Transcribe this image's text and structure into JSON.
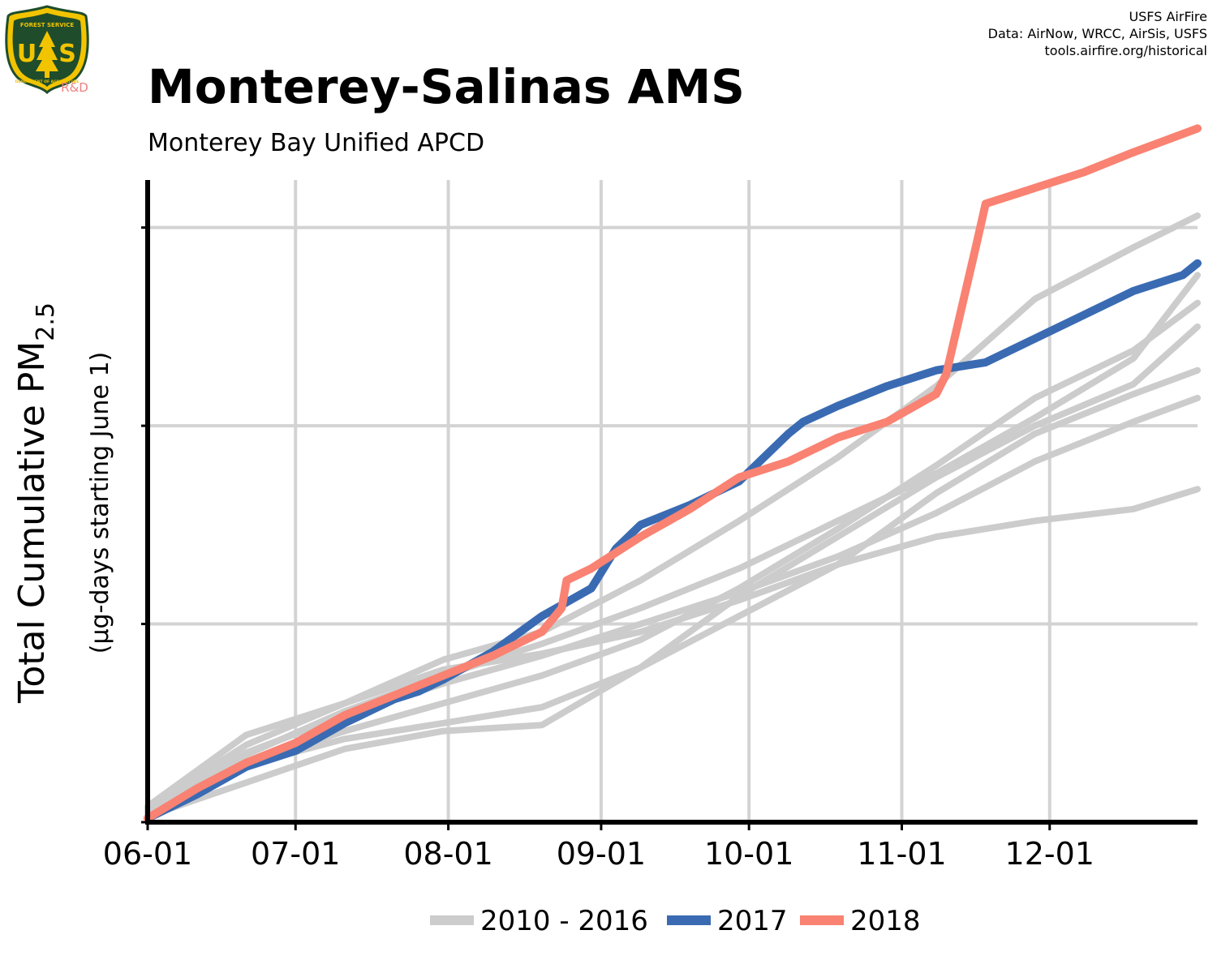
{
  "header": {
    "title": "Monterey-Salinas AMS",
    "subtitle": "Monterey Bay Unified APCD",
    "credits": [
      "USFS AirFire",
      "Data: AirNow, WRCC, AirSis, USFS",
      "tools.airfire.org/historical"
    ]
  },
  "logo": {
    "icon": "usfs-shield-icon",
    "top_text": "FOREST SERVICE",
    "letters_left": "U",
    "letters_right": "S",
    "bottom_text": "DEPARTMENT OF AGRICULTURE",
    "rd_label": "R&D",
    "colors": {
      "shield": "#1f4d2b",
      "trim": "#f2c400",
      "rd": "#f08080"
    }
  },
  "chart_data": {
    "type": "line",
    "title": "Monterey-Salinas AMS",
    "subtitle": "Monterey Bay Unified APCD",
    "ylabel_main": "Total Cumulative PM",
    "ylabel_subscript": "2.5",
    "ylabel_secondary": "(µg-days starting June 1)",
    "xlabel": "",
    "x_ticks": [
      {
        "label": "06-01",
        "day": 0
      },
      {
        "label": "07-01",
        "day": 30
      },
      {
        "label": "08-01",
        "day": 61
      },
      {
        "label": "09-01",
        "day": 92
      },
      {
        "label": "10-01",
        "day": 122
      },
      {
        "label": "11-01",
        "day": 153
      },
      {
        "label": "12-01",
        "day": 183
      }
    ],
    "xlim": [
      0,
      213
    ],
    "ylim": [
      0,
      1620
    ],
    "y_gridlines": [
      0,
      500,
      1000,
      1500
    ],
    "y_tick_labels_shown": false,
    "grid": true,
    "legend_position": "bottom",
    "legend": [
      {
        "label": "2010 - 2016",
        "color": "#cccccc"
      },
      {
        "label": "2017",
        "color": "#3a6bb2"
      },
      {
        "label": "2018",
        "color": "#f98272"
      }
    ],
    "series": [
      {
        "group": "2010 - 2016",
        "color": "#cccccc",
        "x": [
          0,
          20,
          40,
          60,
          80,
          100,
          120,
          140,
          160,
          180,
          200,
          213
        ],
        "y": [
          40,
          220,
          300,
          385,
          425,
          480,
          560,
          650,
          720,
          760,
          790,
          840
        ]
      },
      {
        "group": "2010 - 2016",
        "color": "#cccccc",
        "x": [
          0,
          20,
          40,
          60,
          80,
          100,
          120,
          140,
          160,
          180,
          200,
          213
        ],
        "y": [
          20,
          145,
          210,
          250,
          290,
          390,
          570,
          720,
          870,
          1000,
          1105,
          1250
        ]
      },
      {
        "group": "2010 - 2016",
        "color": "#cccccc",
        "x": [
          0,
          20,
          40,
          60,
          80,
          100,
          120,
          140,
          160,
          180,
          200,
          213
        ],
        "y": [
          15,
          100,
          185,
          230,
          245,
          390,
          520,
          650,
          830,
          980,
          1080,
          1140
        ]
      },
      {
        "group": "2010 - 2016",
        "color": "#cccccc",
        "x": [
          0,
          20,
          40,
          60,
          80,
          100,
          120,
          140,
          160,
          180,
          200,
          213
        ],
        "y": [
          20,
          150,
          230,
          300,
          370,
          460,
          590,
          740,
          900,
          1070,
          1190,
          1310
        ]
      },
      {
        "group": "2010 - 2016",
        "color": "#cccccc",
        "x": [
          0,
          20,
          40,
          60,
          80,
          100,
          120,
          140,
          160,
          180,
          200,
          213
        ],
        "y": [
          25,
          175,
          270,
          350,
          420,
          500,
          580,
          670,
          780,
          910,
          1010,
          1070
        ]
      },
      {
        "group": "2010 - 2016",
        "color": "#cccccc",
        "x": [
          0,
          20,
          40,
          60,
          80,
          100,
          120,
          140,
          160,
          180,
          200,
          213
        ],
        "y": [
          35,
          195,
          300,
          410,
          480,
          610,
          760,
          920,
          1100,
          1320,
          1450,
          1530
        ]
      },
      {
        "group": "2010 - 2016",
        "color": "#cccccc",
        "x": [
          0,
          20,
          40,
          60,
          80,
          100,
          120,
          140,
          160,
          180,
          200,
          213
        ],
        "y": [
          30,
          170,
          280,
          370,
          450,
          540,
          640,
          760,
          880,
          1020,
          1170,
          1380
        ]
      },
      {
        "name": "2017",
        "color": "#3a6bb2",
        "x": [
          0,
          10,
          20,
          30,
          40,
          50,
          55,
          60,
          70,
          80,
          90,
          95,
          100,
          110,
          120,
          130,
          133,
          140,
          150,
          160,
          170,
          180,
          190,
          200,
          210,
          213
        ],
        "y": [
          10,
          70,
          140,
          180,
          250,
          310,
          330,
          360,
          430,
          520,
          590,
          690,
          750,
          800,
          860,
          980,
          1010,
          1050,
          1100,
          1140,
          1160,
          1220,
          1280,
          1340,
          1380,
          1410
        ]
      },
      {
        "name": "2018",
        "color": "#f98272",
        "x": [
          0,
          10,
          20,
          30,
          40,
          50,
          60,
          70,
          80,
          84,
          85,
          90,
          100,
          110,
          120,
          130,
          140,
          150,
          160,
          162,
          168,
          170,
          175,
          180,
          190,
          200,
          213
        ],
        "y": [
          10,
          85,
          150,
          200,
          270,
          320,
          370,
          420,
          480,
          540,
          610,
          640,
          720,
          790,
          870,
          910,
          970,
          1010,
          1080,
          1130,
          1450,
          1560,
          1580,
          1600,
          1640,
          1690,
          1750
        ]
      }
    ]
  }
}
